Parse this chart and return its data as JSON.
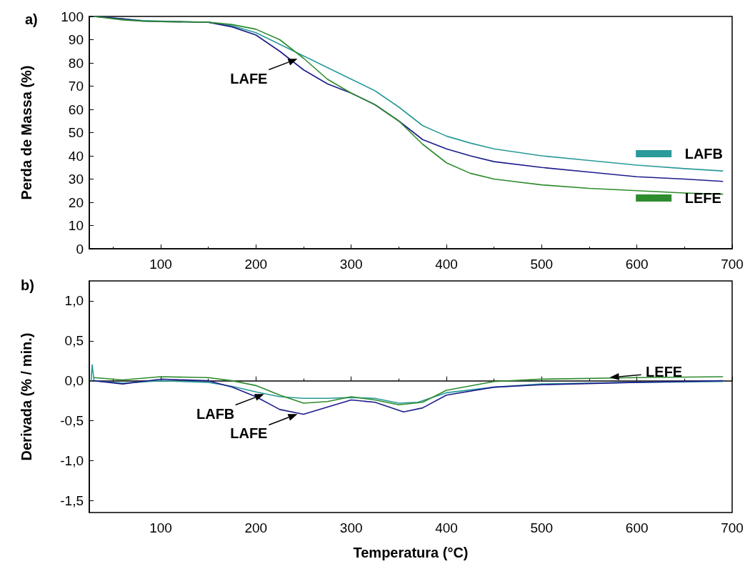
{
  "chart_data": [
    {
      "type": "line",
      "title": "a)",
      "ylabel": "Perda de Massa (%)",
      "xlim": [
        25,
        700
      ],
      "xticks": [
        100,
        200,
        300,
        400,
        500,
        600,
        700
      ],
      "ylim": [
        0,
        100
      ],
      "yticks": [
        0,
        10,
        20,
        30,
        40,
        50,
        60,
        70,
        80,
        90,
        100
      ],
      "marker": "none",
      "annotations": [
        {
          "text": "LAFE",
          "x": 245,
          "y": 82
        }
      ],
      "legend": "right",
      "series": [
        {
          "name": "LAFB",
          "color": "#2a9a9a",
          "x": [
            30,
            60,
            80,
            100,
            150,
            175,
            200,
            225,
            250,
            275,
            300,
            325,
            350,
            375,
            400,
            425,
            450,
            500,
            550,
            600,
            650,
            690
          ],
          "values": [
            100,
            99,
            98.3,
            98,
            97.5,
            96,
            93,
            88,
            83,
            78,
            73,
            68,
            61,
            53,
            48.5,
            45.5,
            43,
            40,
            38,
            36,
            34.5,
            33.5
          ]
        },
        {
          "color": "#1c1c8c",
          "x": [
            30,
            60,
            80,
            100,
            150,
            175,
            200,
            225,
            250,
            275,
            300,
            325,
            350,
            375,
            400,
            425,
            450,
            500,
            550,
            600,
            650,
            690
          ],
          "values": [
            100,
            99,
            98,
            97.8,
            97.5,
            95.5,
            92,
            85,
            77,
            71,
            67,
            62,
            55,
            47,
            43,
            40,
            37.5,
            35,
            33,
            31,
            30,
            29
          ]
        },
        {
          "name": "LEFE",
          "color": "#2e8b2e",
          "x": [
            30,
            60,
            80,
            100,
            150,
            175,
            200,
            225,
            250,
            275,
            300,
            325,
            350,
            375,
            400,
            425,
            450,
            500,
            550,
            600,
            650,
            690
          ],
          "values": [
            100,
            98.5,
            98,
            97.8,
            97.5,
            96.5,
            94.5,
            90,
            82,
            73,
            67,
            62,
            55,
            45,
            37,
            32.5,
            30,
            27.5,
            26,
            25,
            24,
            23.5
          ]
        }
      ]
    },
    {
      "type": "line",
      "title": "b)",
      "xlabel": "Temperatura (°C)",
      "ylabel": "Derivada (% / min.)",
      "xlim": [
        25,
        700
      ],
      "xticks": [
        100,
        200,
        300,
        400,
        500,
        600,
        700
      ],
      "ylim": [
        -1.65,
        1.25
      ],
      "yticks": [
        {
          "value": -1.5,
          "label": "-1,5"
        },
        {
          "value": -1,
          "label": "-1,0"
        },
        {
          "value": -0.5,
          "label": "-0,5"
        },
        {
          "value": 0,
          "label": "0,0"
        },
        {
          "value": 0.5,
          "label": "0,5"
        },
        {
          "value": 1,
          "label": "1,0"
        }
      ],
      "marker": "none",
      "annotations": [
        {
          "text": "LAFB",
          "x": 210,
          "y": -0.16
        },
        {
          "text": "LAFE",
          "x": 245,
          "y": -0.41
        },
        {
          "text": "LEFE",
          "x": 570,
          "y": 0.04
        }
      ],
      "series": [
        {
          "color": "#2a9a9a",
          "x": [
            27,
            28,
            30,
            60,
            100,
            150,
            175,
            200,
            225,
            250,
            275,
            300,
            325,
            350,
            370,
            400,
            450,
            500,
            600,
            690
          ],
          "values": [
            0,
            0.2,
            0,
            -0.03,
            0,
            -0.02,
            -0.07,
            -0.14,
            -0.2,
            -0.22,
            -0.22,
            -0.21,
            -0.22,
            -0.28,
            -0.27,
            -0.15,
            -0.08,
            -0.04,
            -0.02,
            -0.01
          ]
        },
        {
          "color": "#1c1c8c",
          "x": [
            30,
            60,
            100,
            150,
            175,
            200,
            225,
            250,
            275,
            300,
            325,
            355,
            375,
            400,
            450,
            500,
            600,
            690
          ],
          "values": [
            0,
            -0.04,
            0.02,
            0,
            -0.08,
            -0.2,
            -0.36,
            -0.42,
            -0.33,
            -0.24,
            -0.27,
            -0.39,
            -0.34,
            -0.18,
            -0.08,
            -0.05,
            -0.02,
            0
          ]
        },
        {
          "color": "#2e8b2e",
          "x": [
            30,
            60,
            100,
            150,
            175,
            200,
            225,
            250,
            275,
            300,
            325,
            350,
            375,
            400,
            450,
            500,
            600,
            690
          ],
          "values": [
            0.04,
            0.01,
            0.05,
            0.04,
            0,
            -0.06,
            -0.18,
            -0.28,
            -0.26,
            -0.2,
            -0.24,
            -0.3,
            -0.27,
            -0.12,
            -0.01,
            0.02,
            0.04,
            0.05
          ]
        }
      ]
    }
  ]
}
